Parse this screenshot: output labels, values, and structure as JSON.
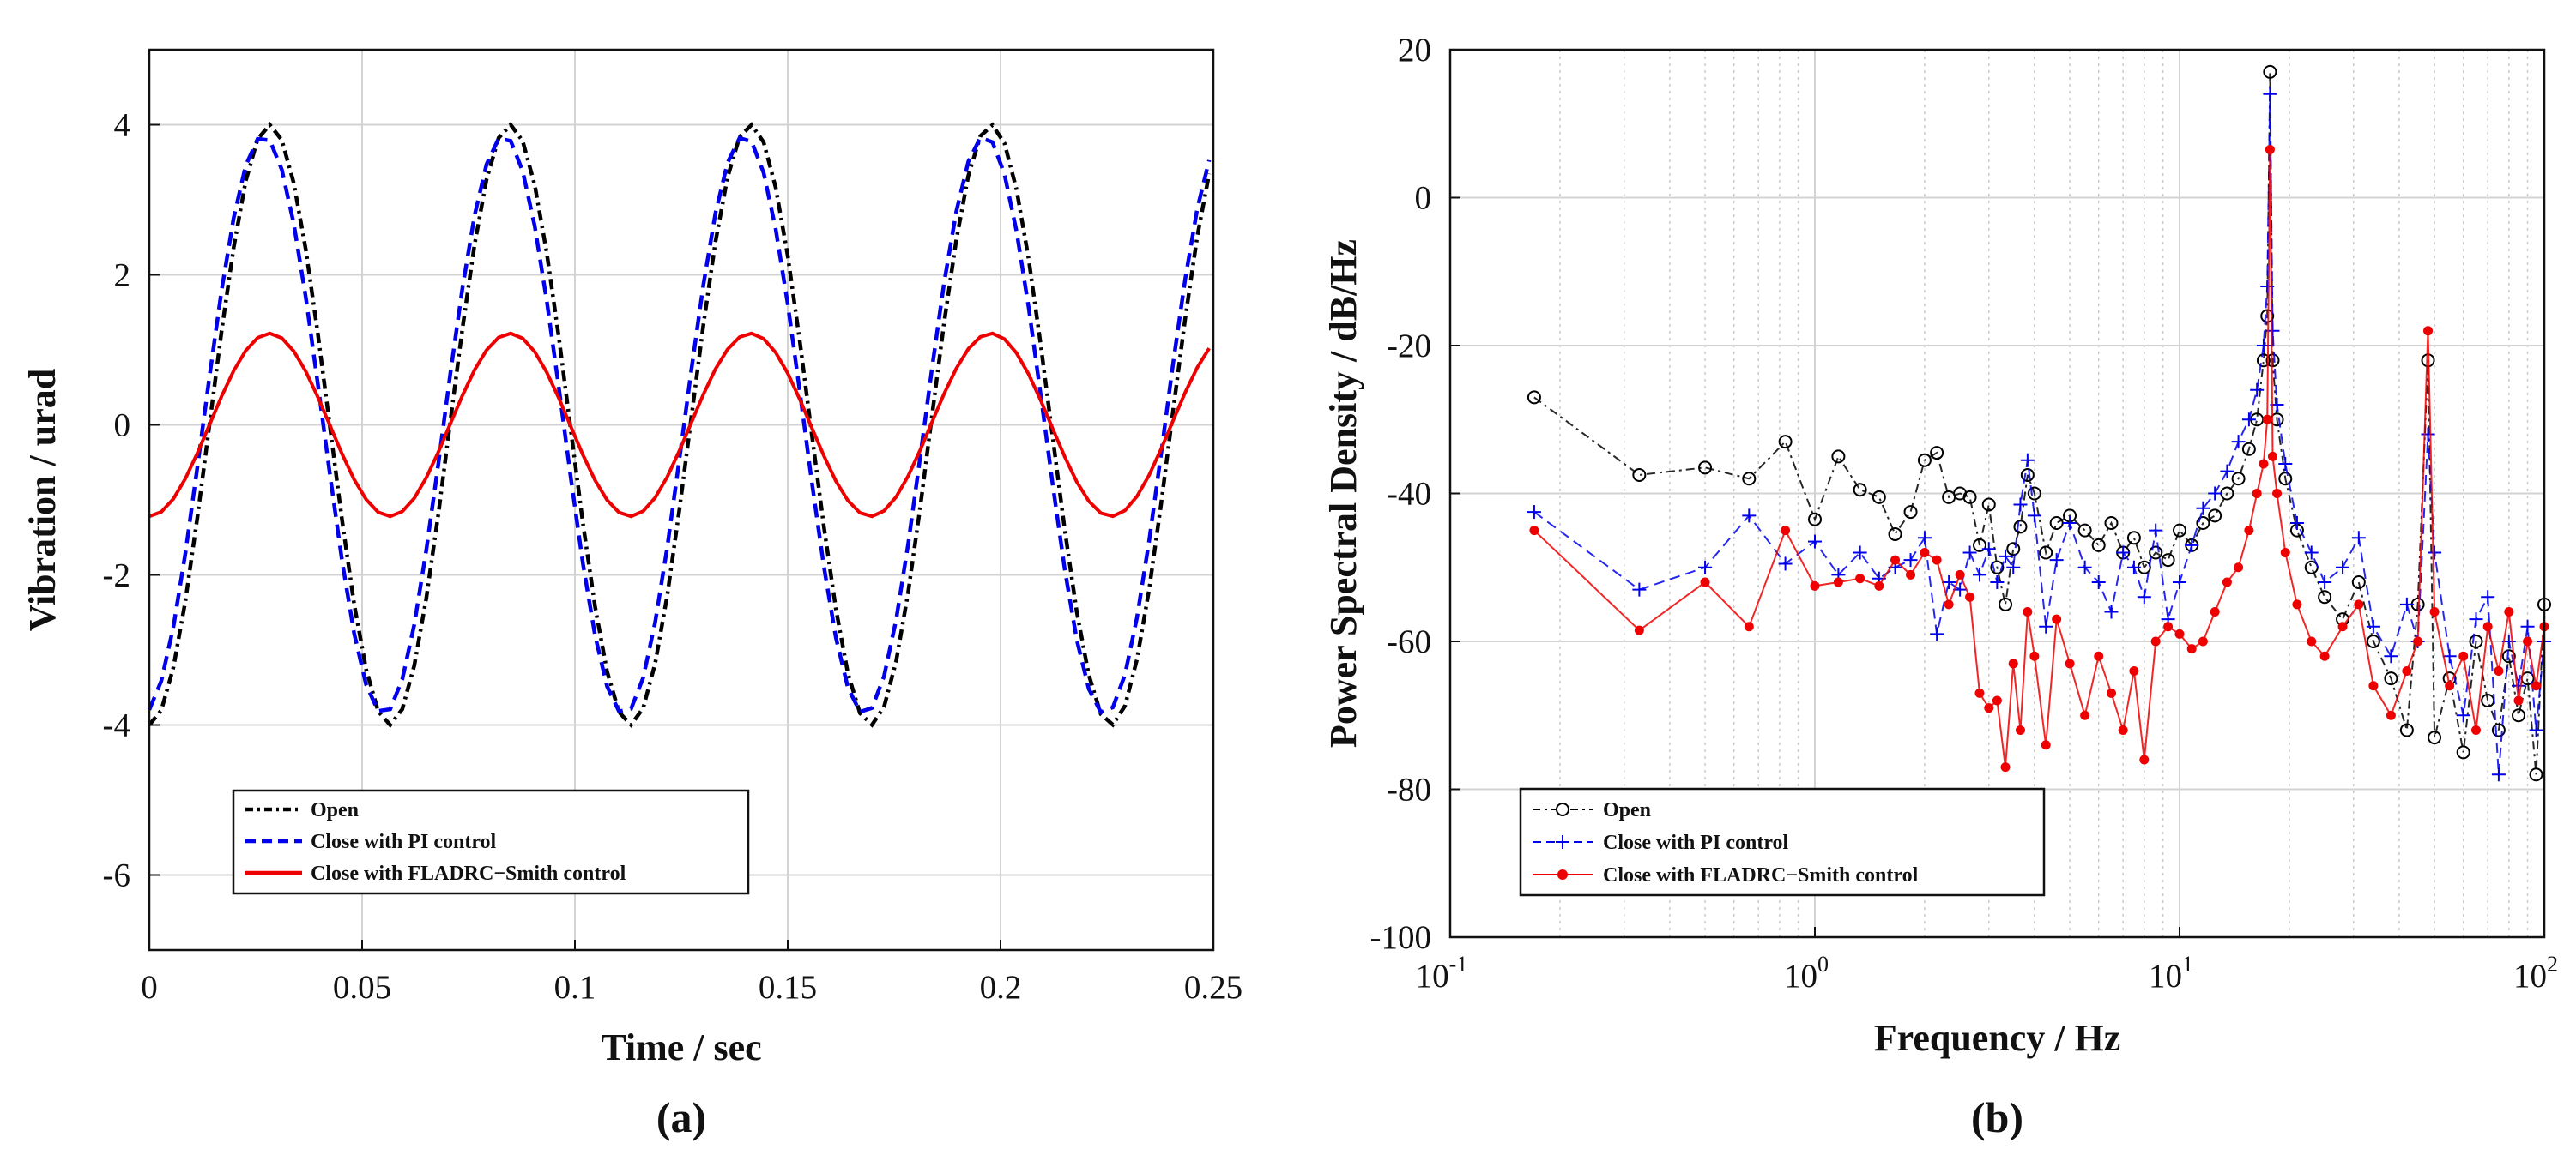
{
  "panels": [
    {
      "label": "(a)"
    },
    {
      "label": "(b)"
    }
  ],
  "chart_data": [
    {
      "type": "line",
      "xlabel": "Time / sec",
      "ylabel": "Vibration / urad",
      "xlim": [
        0,
        0.25
      ],
      "ylim": [
        -7,
        5
      ],
      "xticks": [
        0,
        0.05,
        0.1,
        0.15,
        0.2,
        0.25
      ],
      "xtick_labels": [
        "0",
        "0.05",
        "0.1",
        "0.15",
        "0.2",
        "0.25"
      ],
      "yticks": [
        -6,
        -4,
        -2,
        0,
        2,
        4
      ],
      "ytick_labels": [
        "-6",
        "-4",
        "-2",
        "0",
        "2",
        "4"
      ],
      "grid": true,
      "legend_position": "bottom-left",
      "period": 0.0565,
      "sample_step": 0.00283,
      "series": [
        {
          "name": "Open",
          "color": "#000000",
          "style": "dashdot",
          "amplitude": 4.0,
          "phase_offset": 0.0
        },
        {
          "name": "Close with PI control",
          "color": "#0000ee",
          "style": "dashed",
          "amplitude": 3.85,
          "phase_offset": -0.0015
        },
        {
          "name": "Close with FLADRC−Smith control",
          "color": "#ee0000",
          "style": "solid",
          "amplitude": 1.22,
          "phase_offset": 0.0
        }
      ]
    },
    {
      "type": "line",
      "xlabel": "Frequency / Hz",
      "ylabel": "Power Spectral Density / dB/Hz",
      "xscale": "log",
      "xlim": [
        0.1,
        100
      ],
      "ylim": [
        -100,
        20
      ],
      "xtick_bases": [
        "10",
        "10",
        "10",
        "10"
      ],
      "xtick_exponents": [
        "-1",
        "0",
        "1",
        "2"
      ],
      "yticks": [
        -100,
        -80,
        -60,
        -40,
        -20,
        0,
        20
      ],
      "ytick_labels": [
        "-100",
        "-80",
        "-60",
        "-40",
        "-20",
        "0",
        "20"
      ],
      "grid": true,
      "legend_position": "bottom-left",
      "peak_frequency": 17.7,
      "series": [
        {
          "name": "Open",
          "color": "#000000",
          "marker": "circle",
          "style": "dashdot",
          "points": [
            [
              0.17,
              -27
            ],
            [
              0.33,
              -37.5
            ],
            [
              0.5,
              -36.5
            ],
            [
              0.66,
              -38
            ],
            [
              0.83,
              -33
            ],
            [
              1.0,
              -43.5
            ],
            [
              1.16,
              -35
            ],
            [
              1.33,
              -39.5
            ],
            [
              1.5,
              -40.5
            ],
            [
              1.66,
              -45.5
            ],
            [
              1.83,
              -42.5
            ],
            [
              2.0,
              -35.5
            ],
            [
              2.16,
              -34.5
            ],
            [
              2.33,
              -40.5
            ],
            [
              2.5,
              -40
            ],
            [
              2.66,
              -40.5
            ],
            [
              2.83,
              -47
            ],
            [
              3.0,
              -41.5
            ],
            [
              3.16,
              -50
            ],
            [
              3.33,
              -55
            ],
            [
              3.5,
              -47.5
            ],
            [
              3.66,
              -44.5
            ],
            [
              3.83,
              -37.5
            ],
            [
              4.0,
              -40
            ],
            [
              4.3,
              -48
            ],
            [
              4.6,
              -44
            ],
            [
              5.0,
              -43
            ],
            [
              5.5,
              -45
            ],
            [
              6.0,
              -47
            ],
            [
              6.5,
              -44
            ],
            [
              7.0,
              -48
            ],
            [
              7.5,
              -46
            ],
            [
              8.0,
              -50
            ],
            [
              8.6,
              -48
            ],
            [
              9.3,
              -49
            ],
            [
              10.0,
              -45
            ],
            [
              10.8,
              -47
            ],
            [
              11.6,
              -44
            ],
            [
              12.5,
              -43
            ],
            [
              13.5,
              -40
            ],
            [
              14.5,
              -38
            ],
            [
              15.5,
              -34
            ],
            [
              16.3,
              -30
            ],
            [
              17.0,
              -22
            ],
            [
              17.4,
              -16
            ],
            [
              17.7,
              17
            ],
            [
              18.0,
              -22
            ],
            [
              18.5,
              -30
            ],
            [
              19.5,
              -38
            ],
            [
              21.0,
              -45
            ],
            [
              23.0,
              -50
            ],
            [
              25.0,
              -54
            ],
            [
              28.0,
              -57
            ],
            [
              31.0,
              -52
            ],
            [
              34.0,
              -60
            ],
            [
              38.0,
              -65
            ],
            [
              42.0,
              -72
            ],
            [
              45.0,
              -55
            ],
            [
              48.0,
              -22
            ],
            [
              50.0,
              -73
            ],
            [
              55.0,
              -65
            ],
            [
              60.0,
              -75
            ],
            [
              65.0,
              -60
            ],
            [
              70.0,
              -68
            ],
            [
              75.0,
              -72
            ],
            [
              80.0,
              -62
            ],
            [
              85.0,
              -70
            ],
            [
              90.0,
              -65
            ],
            [
              95.0,
              -78
            ],
            [
              100.0,
              -55
            ]
          ]
        },
        {
          "name": "Close with PI control",
          "color": "#0000ee",
          "marker": "plus",
          "style": "dashed",
          "points": [
            [
              0.17,
              -42.5
            ],
            [
              0.33,
              -53
            ],
            [
              0.5,
              -50
            ],
            [
              0.66,
              -43
            ],
            [
              0.83,
              -49.5
            ],
            [
              1.0,
              -46.5
            ],
            [
              1.16,
              -51
            ],
            [
              1.33,
              -48
            ],
            [
              1.5,
              -51.5
            ],
            [
              1.66,
              -50
            ],
            [
              1.83,
              -49
            ],
            [
              2.0,
              -46
            ],
            [
              2.16,
              -59
            ],
            [
              2.33,
              -52
            ],
            [
              2.5,
              -53
            ],
            [
              2.66,
              -48
            ],
            [
              2.83,
              -51
            ],
            [
              3.0,
              -47.5
            ],
            [
              3.16,
              -52
            ],
            [
              3.33,
              -48.5
            ],
            [
              3.5,
              -50
            ],
            [
              3.66,
              -41.5
            ],
            [
              3.83,
              -35.5
            ],
            [
              4.0,
              -43
            ],
            [
              4.3,
              -58
            ],
            [
              4.6,
              -49
            ],
            [
              5.0,
              -44
            ],
            [
              5.5,
              -50
            ],
            [
              6.0,
              -52
            ],
            [
              6.5,
              -56
            ],
            [
              7.0,
              -48
            ],
            [
              7.5,
              -50
            ],
            [
              8.0,
              -54
            ],
            [
              8.6,
              -45
            ],
            [
              9.3,
              -57
            ],
            [
              10.0,
              -52
            ],
            [
              10.8,
              -47
            ],
            [
              11.6,
              -42
            ],
            [
              12.5,
              -40
            ],
            [
              13.5,
              -37
            ],
            [
              14.5,
              -33
            ],
            [
              15.5,
              -30
            ],
            [
              16.3,
              -26
            ],
            [
              17.0,
              -20
            ],
            [
              17.4,
              -12
            ],
            [
              17.7,
              14
            ],
            [
              18.0,
              -18
            ],
            [
              18.5,
              -28
            ],
            [
              19.5,
              -36
            ],
            [
              21.0,
              -44
            ],
            [
              23.0,
              -48
            ],
            [
              25.0,
              -52
            ],
            [
              28.0,
              -50
            ],
            [
              31.0,
              -46
            ],
            [
              34.0,
              -58
            ],
            [
              38.0,
              -62
            ],
            [
              42.0,
              -55
            ],
            [
              45.0,
              -60
            ],
            [
              48.0,
              -32
            ],
            [
              50.0,
              -48
            ],
            [
              55.0,
              -62
            ],
            [
              60.0,
              -70
            ],
            [
              65.0,
              -57
            ],
            [
              70.0,
              -54
            ],
            [
              75.0,
              -78
            ],
            [
              80.0,
              -60
            ],
            [
              85.0,
              -66
            ],
            [
              90.0,
              -58
            ],
            [
              95.0,
              -72
            ],
            [
              100.0,
              -60
            ]
          ]
        },
        {
          "name": "Close with FLADRC−Smith control",
          "color": "#ee0000",
          "marker": "dot",
          "style": "solid",
          "points": [
            [
              0.17,
              -45
            ],
            [
              0.33,
              -58.5
            ],
            [
              0.5,
              -52
            ],
            [
              0.66,
              -58
            ],
            [
              0.83,
              -45
            ],
            [
              1.0,
              -52.5
            ],
            [
              1.16,
              -52
            ],
            [
              1.33,
              -51.5
            ],
            [
              1.5,
              -52.5
            ],
            [
              1.66,
              -49
            ],
            [
              1.83,
              -51
            ],
            [
              2.0,
              -48
            ],
            [
              2.16,
              -49
            ],
            [
              2.33,
              -55
            ],
            [
              2.5,
              -51
            ],
            [
              2.66,
              -54
            ],
            [
              2.83,
              -67
            ],
            [
              3.0,
              -69
            ],
            [
              3.16,
              -68
            ],
            [
              3.33,
              -77
            ],
            [
              3.5,
              -63
            ],
            [
              3.66,
              -72
            ],
            [
              3.83,
              -56
            ],
            [
              4.0,
              -62
            ],
            [
              4.3,
              -74
            ],
            [
              4.6,
              -57
            ],
            [
              5.0,
              -63
            ],
            [
              5.5,
              -70
            ],
            [
              6.0,
              -62
            ],
            [
              6.5,
              -67
            ],
            [
              7.0,
              -72
            ],
            [
              7.5,
              -64
            ],
            [
              8.0,
              -76
            ],
            [
              8.6,
              -60
            ],
            [
              9.3,
              -58
            ],
            [
              10.0,
              -59
            ],
            [
              10.8,
              -61
            ],
            [
              11.6,
              -60
            ],
            [
              12.5,
              -56
            ],
            [
              13.5,
              -52
            ],
            [
              14.5,
              -50
            ],
            [
              15.5,
              -45
            ],
            [
              16.3,
              -40
            ],
            [
              17.0,
              -36
            ],
            [
              17.4,
              -30
            ],
            [
              17.7,
              6.5
            ],
            [
              18.0,
              -35
            ],
            [
              18.5,
              -40
            ],
            [
              19.5,
              -48
            ],
            [
              21.0,
              -55
            ],
            [
              23.0,
              -60
            ],
            [
              25.0,
              -62
            ],
            [
              28.0,
              -58
            ],
            [
              31.0,
              -55
            ],
            [
              34.0,
              -66
            ],
            [
              38.0,
              -70
            ],
            [
              42.0,
              -64
            ],
            [
              45.0,
              -60
            ],
            [
              48.0,
              -18
            ],
            [
              50.0,
              -56
            ],
            [
              55.0,
              -66
            ],
            [
              60.0,
              -62
            ],
            [
              65.0,
              -72
            ],
            [
              70.0,
              -58
            ],
            [
              75.0,
              -64
            ],
            [
              80.0,
              -56
            ],
            [
              85.0,
              -68
            ],
            [
              90.0,
              -60
            ],
            [
              95.0,
              -66
            ],
            [
              100.0,
              -58
            ]
          ]
        }
      ]
    }
  ]
}
